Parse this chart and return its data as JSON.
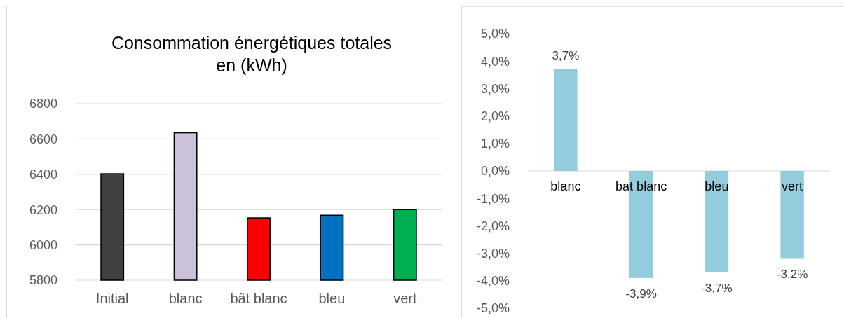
{
  "chart_data": [
    {
      "type": "bar",
      "title": "Consommation énergétiques totales en (kWh)",
      "categories": [
        "Initial",
        "blanc",
        "bât blanc",
        "bleu",
        "vert"
      ],
      "values": [
        6403,
        6635,
        6153,
        6168,
        6200
      ],
      "colors": [
        "#404040",
        "#ccc1da",
        "#ff0000",
        "#0070c0",
        "#00b050"
      ],
      "ylim": [
        5800,
        6800
      ],
      "yticks": [
        5800,
        6000,
        6200,
        6400,
        6600,
        6800
      ],
      "grid": "y"
    },
    {
      "type": "bar",
      "categories": [
        "blanc",
        "bat blanc",
        "bleu",
        "vert"
      ],
      "values": [
        3.7,
        -3.9,
        -3.7,
        -3.2
      ],
      "color": "#93cddd",
      "value_labels": [
        "3,7%",
        "-3,9%",
        "-3,7%",
        "-3,2%"
      ],
      "ylim": [
        -5,
        5
      ],
      "yticks": [
        {
          "value": -5,
          "label": "-5,0%"
        },
        {
          "value": -4,
          "label": "-4,0%"
        },
        {
          "value": -3,
          "label": "-3,0%"
        },
        {
          "value": -2,
          "label": "-2,0%"
        },
        {
          "value": -1,
          "label": "-1,0%"
        },
        {
          "value": 0,
          "label": "0,0%"
        },
        {
          "value": 1,
          "label": "1,0%"
        },
        {
          "value": 2,
          "label": "2,0%"
        },
        {
          "value": 3,
          "label": "3,0%"
        },
        {
          "value": 4,
          "label": "4,0%"
        },
        {
          "value": 5,
          "label": "5,0%"
        }
      ]
    }
  ]
}
